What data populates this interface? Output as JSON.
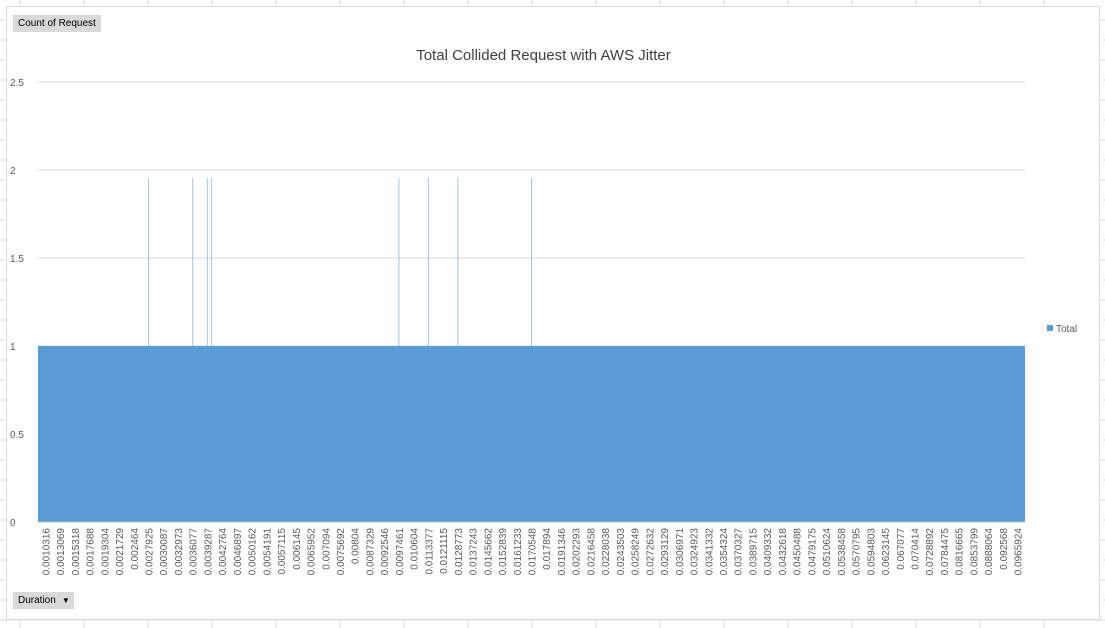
{
  "pivot": {
    "value_field_label": "Count of Request",
    "axis_field_label": "Duration",
    "dropdown_glyph": "▼"
  },
  "colors": {
    "series": "#5b9bd5",
    "gridline": "#d9d9d9",
    "text": "#595959",
    "title": "#404040",
    "sheet_grid": "#dcdcdc"
  },
  "chart_data": {
    "type": "area",
    "title": "Total Collided Request with AWS Jitter",
    "xlabel": "",
    "ylabel": "",
    "ylim": [
      0,
      2.5
    ],
    "yticks": [
      0,
      0.5,
      1,
      1.5,
      2,
      2.5
    ],
    "grid": true,
    "legend_position": "right",
    "x_tick_labels": [
      "0.0010316",
      "0.0013069",
      "0.0015318",
      "0.0017688",
      "0.0019304",
      "0.0021729",
      "0.002464",
      "0.0027925",
      "0.0030087",
      "0.0032973",
      "0.0036077",
      "0.0039287",
      "0.0042764",
      "0.0046897",
      "0.0050162",
      "0.0054191",
      "0.0057115",
      "0.006145",
      "0.0065952",
      "0.007094",
      "0.0075692",
      "0.00804",
      "0.0087329",
      "0.0092546",
      "0.0097461",
      "0.010604",
      "0.0113377",
      "0.0121115",
      "0.0128773",
      "0.0137243",
      "0.0145662",
      "0.0152839",
      "0.0161233",
      "0.0170548",
      "0.017894",
      "0.0191346",
      "0.0202293",
      "0.0216458",
      "0.0228038",
      "0.0243503",
      "0.0258249",
      "0.0272632",
      "0.0293129",
      "0.0306971",
      "0.0324923",
      "0.0341332",
      "0.0354324",
      "0.0370327",
      "0.0389715",
      "0.0409332",
      "0.0432618",
      "0.0450488",
      "0.0479175",
      "0.0510624",
      "0.0538458",
      "0.0570795",
      "0.0594803",
      "0.0623145",
      "0.067077",
      "0.070414",
      "0.0728892",
      "0.0784475",
      "0.0816665",
      "0.0853799",
      "0.0888064",
      "0.092568",
      "0.0965924"
    ],
    "series": [
      {
        "name": "Total",
        "baseline_value": 1,
        "spikes": [
          {
            "near_x": "0.0027925",
            "value": 2
          },
          {
            "near_x": "0.0036077",
            "value": 2
          },
          {
            "near_x": "0.0039287",
            "value": 2
          },
          {
            "near_x": "0.0039287",
            "value": 2
          },
          {
            "near_x": "0.0097461",
            "value": 2
          },
          {
            "near_x": "0.0113377",
            "value": 2
          },
          {
            "near_x": "0.0128773",
            "value": 2
          },
          {
            "near_x": "0.0170548",
            "value": 2
          }
        ]
      }
    ]
  }
}
